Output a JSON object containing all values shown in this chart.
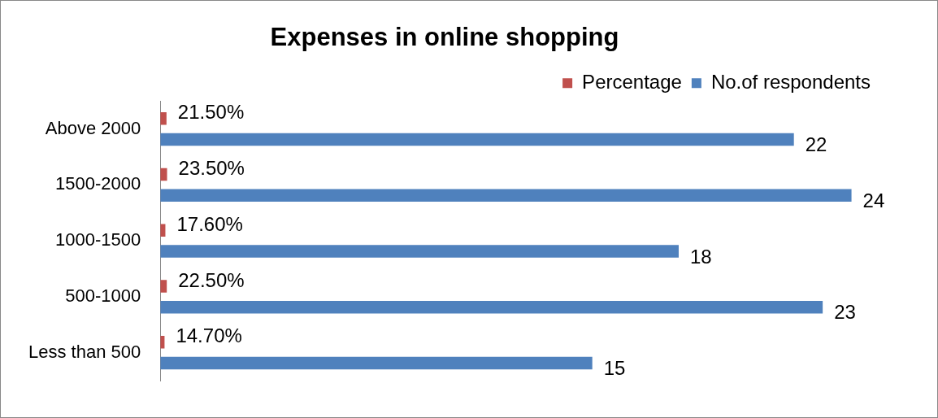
{
  "chart_data": {
    "type": "bar",
    "orientation": "horizontal",
    "title": "Expenses in online shopping",
    "categories": [
      "Above 2000",
      "1500-2000",
      "1000-1500",
      "500-1000",
      "Less than 500"
    ],
    "series": [
      {
        "name": "Percentage",
        "color": "#c0504d",
        "values": [
          0.215,
          0.235,
          0.176,
          0.225,
          0.147
        ],
        "value_labels": [
          "21.50%",
          "23.50%",
          "17.60%",
          "22.50%",
          "14.70%"
        ]
      },
      {
        "name": "No.of respondents",
        "color": "#4f81bd",
        "values": [
          22,
          24,
          18,
          23,
          15
        ],
        "value_labels": [
          "22",
          "24",
          "18",
          "23",
          "15"
        ]
      }
    ],
    "legend": "top right"
  }
}
